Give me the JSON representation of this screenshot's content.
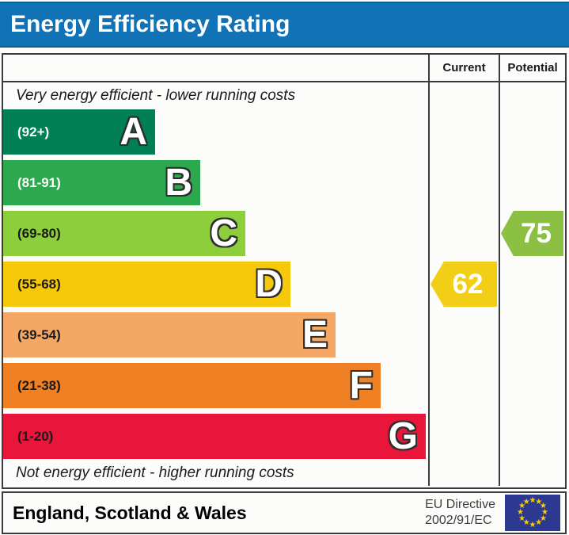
{
  "title_bar": {
    "title": "Energy Efficiency Rating",
    "bg_color": "#1173B5"
  },
  "table": {
    "header": {
      "current": "Current",
      "potential": "Potential"
    },
    "caption_top": "Very energy efficient - lower running costs",
    "caption_bottom": "Not energy efficient - higher running costs"
  },
  "chart_data": {
    "type": "bar",
    "title": "Energy Efficiency Rating",
    "categories": [
      "A",
      "B",
      "C",
      "D",
      "E",
      "F",
      "G"
    ],
    "bands": [
      {
        "letter": "A",
        "range_label": "(92+)",
        "range": [
          92,
          100
        ],
        "color": "#008054",
        "label_color": "#ffffff"
      },
      {
        "letter": "B",
        "range_label": "(81-91)",
        "range": [
          81,
          91
        ],
        "color": "#2CA94E",
        "label_color": "#ffffff"
      },
      {
        "letter": "C",
        "range_label": "(69-80)",
        "range": [
          69,
          80
        ],
        "color": "#8DCE3C",
        "label_color": "#1a1a1a"
      },
      {
        "letter": "D",
        "range_label": "(55-68)",
        "range": [
          55,
          68
        ],
        "color": "#F5C90A",
        "label_color": "#1a1a1a"
      },
      {
        "letter": "E",
        "range_label": "(39-54)",
        "range": [
          39,
          54
        ],
        "color": "#F5A866",
        "label_color": "#1a1a1a"
      },
      {
        "letter": "F",
        "range_label": "(21-38)",
        "range": [
          21,
          38
        ],
        "color": "#EF8023",
        "label_color": "#1a1a1a"
      },
      {
        "letter": "G",
        "range_label": "(1-20)",
        "range": [
          1,
          20
        ],
        "color": "#E9153B",
        "label_color": "#1a1a1a"
      }
    ],
    "current": {
      "label": "Current",
      "value": 62,
      "band": "D",
      "arrow_color": "#F2CE16"
    },
    "potential": {
      "label": "Potential",
      "value": 75,
      "band": "C",
      "arrow_color": "#8CC043"
    }
  },
  "footer": {
    "region": "England, Scotland & Wales",
    "directive_line1": "EU Directive",
    "directive_line2": "2002/91/EC",
    "flag": {
      "name": "eu-flag",
      "bg_color": "#2B3990",
      "star_color": "#FFCC00",
      "star_count": 12,
      "star_glyph": "★"
    }
  }
}
